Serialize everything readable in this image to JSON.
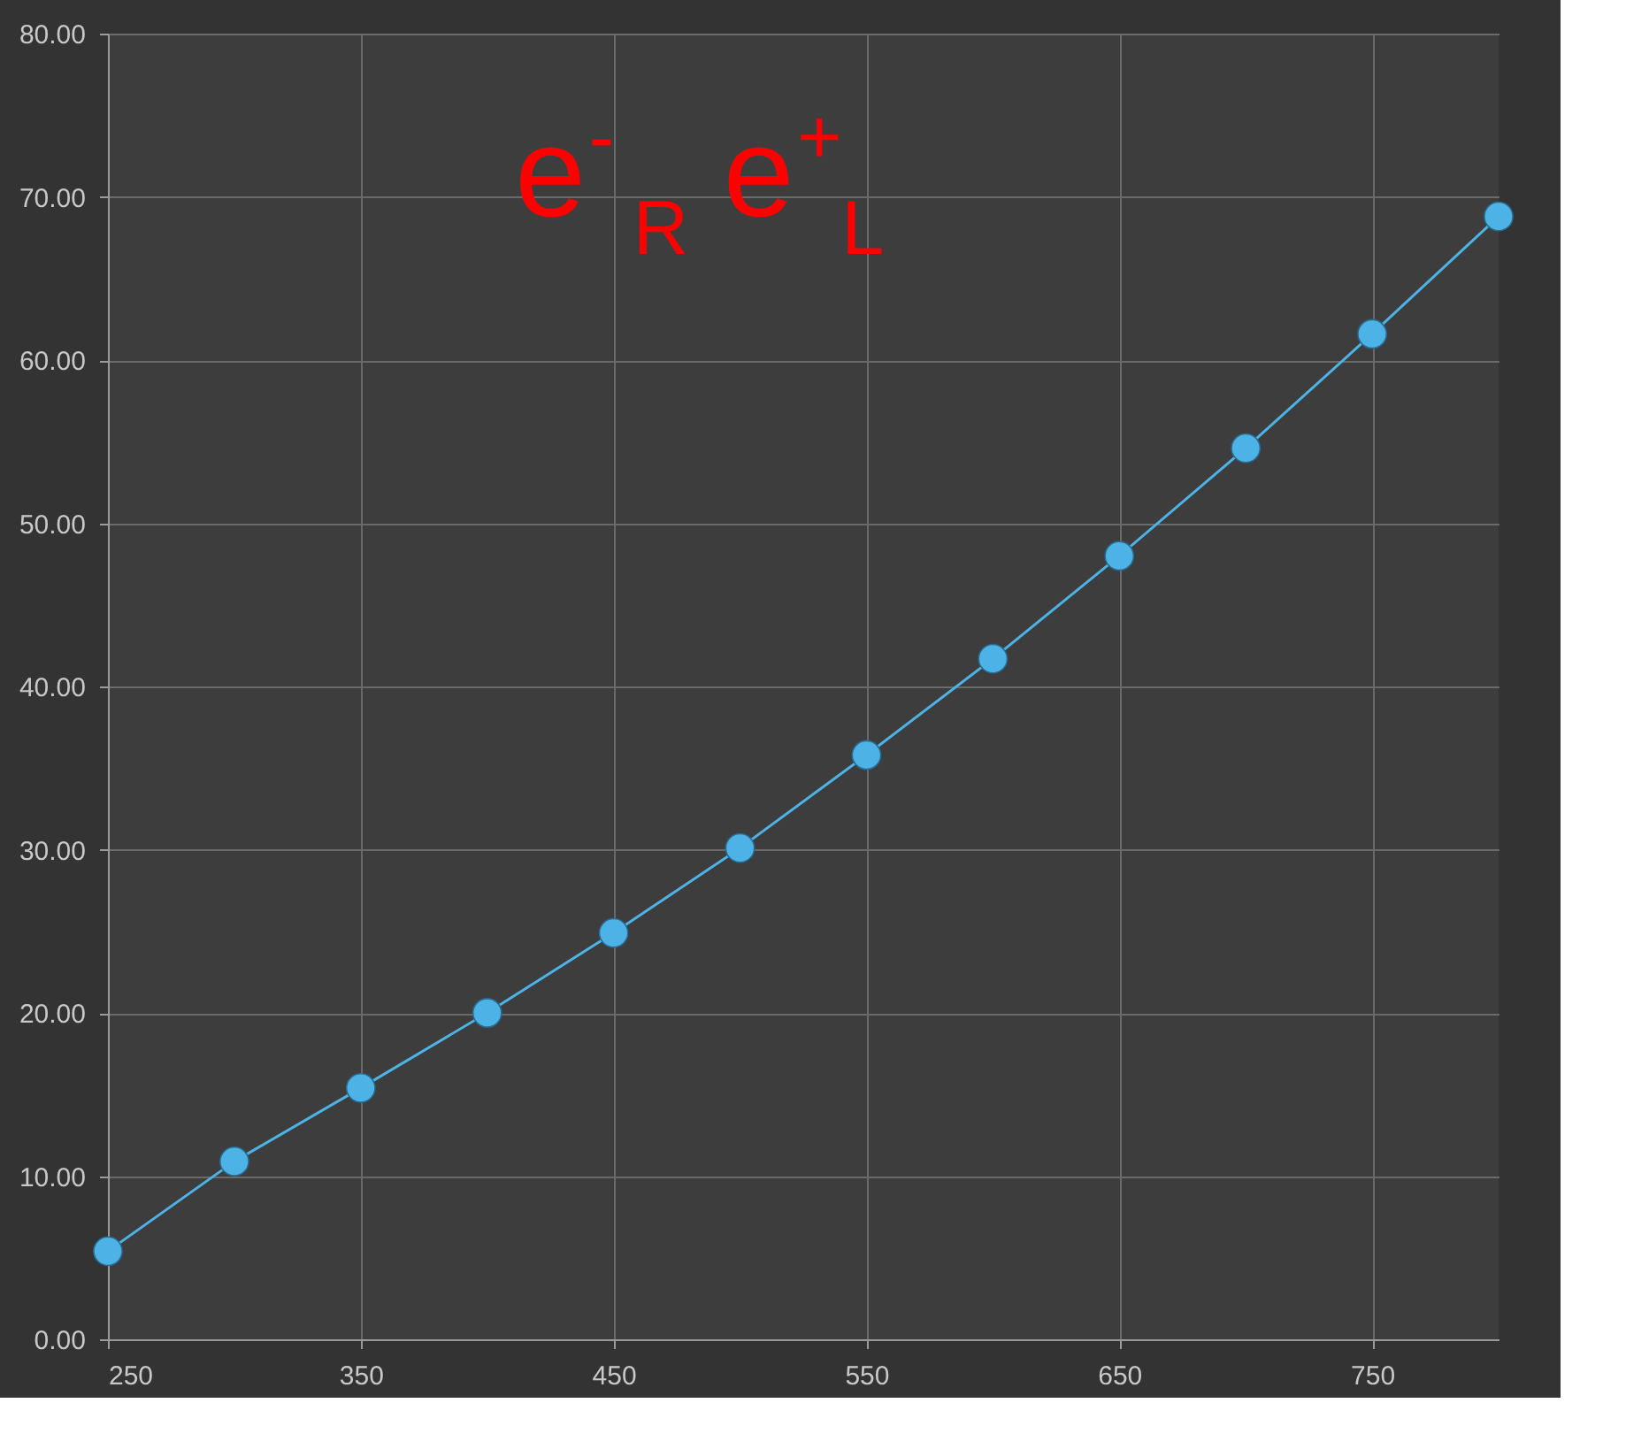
{
  "chart_data": {
    "type": "line",
    "x": [
      250,
      300,
      350,
      400,
      450,
      500,
      550,
      600,
      650,
      700,
      750,
      800
    ],
    "series": [
      {
        "color": "#4db3e6",
        "values": [
          5.4,
          10.9,
          15.4,
          20.0,
          24.9,
          30.1,
          35.8,
          41.7,
          48.0,
          54.6,
          61.6,
          68.8
        ]
      }
    ],
    "xlim": [
      250,
      800
    ],
    "xticks": [
      250,
      350,
      450,
      550,
      650,
      750
    ],
    "ylim": [
      0,
      80
    ],
    "yticks": [
      {
        "value": 0,
        "label": "0.00"
      },
      {
        "value": 10,
        "label": "10.00"
      },
      {
        "value": 20,
        "label": "20.00"
      },
      {
        "value": 30,
        "label": "30.00"
      },
      {
        "value": 40,
        "label": "40.00"
      },
      {
        "value": 50,
        "label": "50.00"
      },
      {
        "value": 60,
        "label": "60.00"
      },
      {
        "value": 70,
        "label": "70.00"
      },
      {
        "value": 80,
        "label": "80.00"
      }
    ],
    "annotations": [
      "e$^{-}$$_{R}$ e$^{+}$$_{L}$"
    ],
    "grid": true,
    "marker": "circle",
    "line_style": "solid",
    "legend": false
  }
}
